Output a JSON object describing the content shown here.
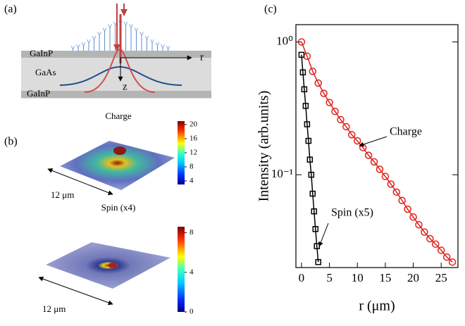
{
  "panel_a": {
    "label": "(a)",
    "layers": [
      "GaInP",
      "GaAs",
      "GaInP"
    ],
    "axis_r": "r",
    "axis_z": "z"
  },
  "panel_b": {
    "label": "(b)",
    "maps": [
      {
        "title": "Charge",
        "scale": "12 μm",
        "clim": [
          3,
          21
        ],
        "cticks": [
          4,
          8,
          12,
          16,
          20
        ]
      },
      {
        "title": "Spin (x4)",
        "scale": "12 μm",
        "clim": [
          0,
          8.6
        ],
        "cticks": [
          0,
          4,
          8
        ]
      }
    ]
  },
  "chart_data": {
    "type": "line",
    "panel_label": "(c)",
    "xlabel": "r (μm)",
    "ylabel": "Intensity (arb.units)",
    "xlim": [
      -1,
      28
    ],
    "ylim": [
      0.02,
      1.35
    ],
    "log_y": true,
    "xticks": [
      0,
      5,
      10,
      15,
      20,
      25
    ],
    "yticks": [
      {
        "value": 1,
        "label": "10⁰"
      },
      {
        "value": 0.1,
        "label": "10⁻¹"
      }
    ],
    "series": [
      {
        "name": "Charge",
        "color": "#e0201b",
        "marker": "circle",
        "x": [
          0,
          1,
          2,
          3,
          4,
          5,
          6,
          7,
          8,
          9,
          10,
          11,
          12,
          13,
          14,
          15,
          16,
          17,
          18,
          19,
          20,
          21,
          22,
          23,
          24,
          25,
          26,
          27
        ],
        "values": [
          1.0,
          0.78,
          0.6,
          0.49,
          0.41,
          0.35,
          0.3,
          0.26,
          0.23,
          0.2,
          0.18,
          0.16,
          0.14,
          0.125,
          0.11,
          0.097,
          0.085,
          0.074,
          0.064,
          0.055,
          0.048,
          0.042,
          0.037,
          0.033,
          0.03,
          0.027,
          0.024,
          0.022
        ]
      },
      {
        "name": "Spin (x5)",
        "color": "#000000",
        "marker": "square",
        "x": [
          0,
          0.25,
          0.5,
          0.75,
          1,
          1.25,
          1.5,
          1.75,
          2,
          2.25,
          2.5,
          2.75,
          3
        ],
        "values": [
          0.8,
          0.59,
          0.44,
          0.33,
          0.24,
          0.18,
          0.13,
          0.1,
          0.072,
          0.053,
          0.039,
          0.029,
          0.022
        ]
      }
    ]
  }
}
